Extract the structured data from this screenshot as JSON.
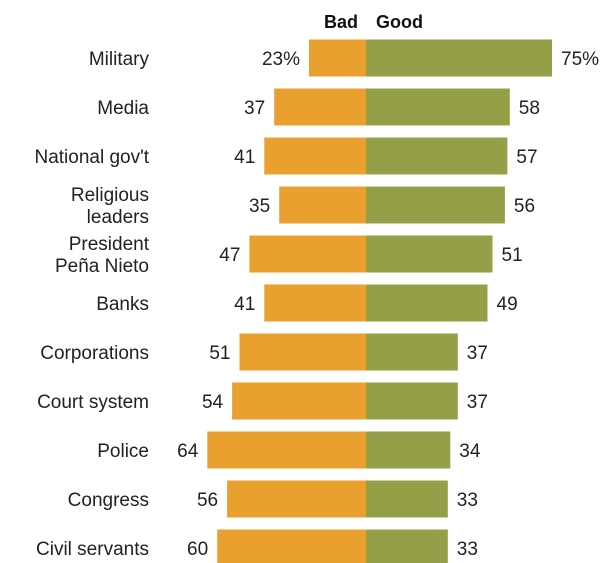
{
  "chart_data": {
    "type": "bar",
    "orientation": "horizontal-diverging",
    "title": "",
    "xlabel": "",
    "ylabel": "",
    "value_unit": "%",
    "categories": [
      [
        "Military"
      ],
      [
        "Media"
      ],
      [
        "National gov't"
      ],
      [
        "Religious",
        "leaders"
      ],
      [
        "President",
        "Peña Nieto"
      ],
      [
        "Banks"
      ],
      [
        "Corporations"
      ],
      [
        "Court system"
      ],
      [
        "Police"
      ],
      [
        "Congress"
      ],
      [
        "Civil servants"
      ]
    ],
    "series": [
      {
        "name": "Bad",
        "color": "#e9a02e",
        "values": [
          23,
          37,
          41,
          35,
          47,
          41,
          51,
          54,
          64,
          56,
          60
        ],
        "labels": [
          "23%",
          "37",
          "41",
          "35",
          "47",
          "41",
          "51",
          "54",
          "64",
          "56",
          "60"
        ]
      },
      {
        "name": "Good",
        "color": "#949f48",
        "values": [
          75,
          58,
          57,
          56,
          51,
          49,
          37,
          37,
          34,
          33,
          33
        ],
        "labels": [
          "75%",
          "58",
          "57",
          "56",
          "51",
          "49",
          "37",
          "37",
          "34",
          "33",
          "33"
        ]
      }
    ],
    "legend": "top-center",
    "grid": false
  }
}
